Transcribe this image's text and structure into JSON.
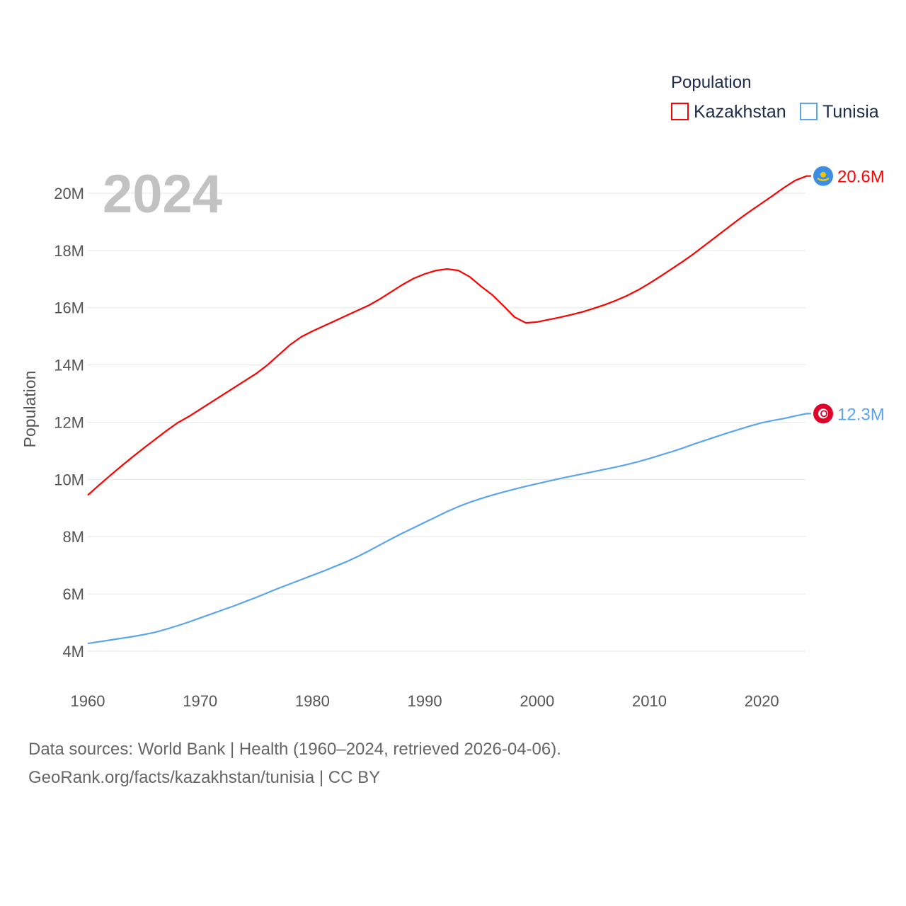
{
  "chart_data": {
    "type": "line",
    "title": "2024",
    "xlabel": "",
    "ylabel": "Population",
    "legend_title": "Population",
    "legend_position": "top-right",
    "xlim": [
      1960,
      2024
    ],
    "ylim": [
      4,
      21
    ],
    "x_ticks": [
      "1960",
      "1970",
      "1980",
      "1990",
      "2000",
      "2010",
      "2020"
    ],
    "y_ticks": [
      {
        "v": 4,
        "label": "4M"
      },
      {
        "v": 6,
        "label": "6M"
      },
      {
        "v": 8,
        "label": "8M"
      },
      {
        "v": 10,
        "label": "10M"
      },
      {
        "v": 12,
        "label": "12M"
      },
      {
        "v": 14,
        "label": "14M"
      },
      {
        "v": 16,
        "label": "16M"
      },
      {
        "v": 18,
        "label": "18M"
      },
      {
        "v": 20,
        "label": "20M"
      }
    ],
    "grid": true,
    "x_start": 1960,
    "series": [
      {
        "name": "Kazakhstan",
        "color": "#ff0000",
        "end_label": "20.6M",
        "flag": "kazakhstan-flag",
        "values": [
          9.45,
          9.8,
          10.14,
          10.47,
          10.79,
          11.1,
          11.4,
          11.7,
          11.98,
          12.2,
          12.45,
          12.7,
          12.95,
          13.2,
          13.45,
          13.7,
          14.0,
          14.35,
          14.7,
          14.98,
          15.18,
          15.36,
          15.54,
          15.72,
          15.9,
          16.08,
          16.3,
          16.55,
          16.8,
          17.02,
          17.18,
          17.3,
          17.35,
          17.3,
          17.08,
          16.75,
          16.45,
          16.07,
          15.67,
          15.47,
          15.5,
          15.58,
          15.66,
          15.75,
          15.85,
          15.97,
          16.1,
          16.25,
          16.42,
          16.62,
          16.85,
          17.1,
          17.36,
          17.62,
          17.9,
          18.2,
          18.5,
          18.8,
          19.1,
          19.38,
          19.65,
          19.92,
          20.2,
          20.45,
          20.6
        ]
      },
      {
        "name": "Tunisia",
        "color": "#5ba4ee",
        "end_label": "12.3M",
        "flag": "tunisia-flag",
        "values": [
          4.27,
          4.33,
          4.39,
          4.45,
          4.51,
          4.58,
          4.66,
          4.77,
          4.89,
          5.02,
          5.16,
          5.3,
          5.44,
          5.58,
          5.73,
          5.88,
          6.04,
          6.2,
          6.35,
          6.5,
          6.65,
          6.8,
          6.96,
          7.12,
          7.3,
          7.5,
          7.71,
          7.92,
          8.12,
          8.31,
          8.5,
          8.69,
          8.88,
          9.05,
          9.2,
          9.33,
          9.45,
          9.56,
          9.66,
          9.76,
          9.85,
          9.94,
          10.03,
          10.11,
          10.19,
          10.27,
          10.35,
          10.43,
          10.52,
          10.62,
          10.73,
          10.85,
          10.97,
          11.1,
          11.24,
          11.37,
          11.5,
          11.63,
          11.75,
          11.87,
          11.98,
          12.06,
          12.13,
          12.22,
          12.3
        ]
      }
    ]
  },
  "footer": {
    "line1": "Data sources: World Bank | Health (1960–2024, retrieved 2026-04-06).",
    "line2": "GeoRank.org/facts/kazakhstan/tunisia | CC BY"
  }
}
